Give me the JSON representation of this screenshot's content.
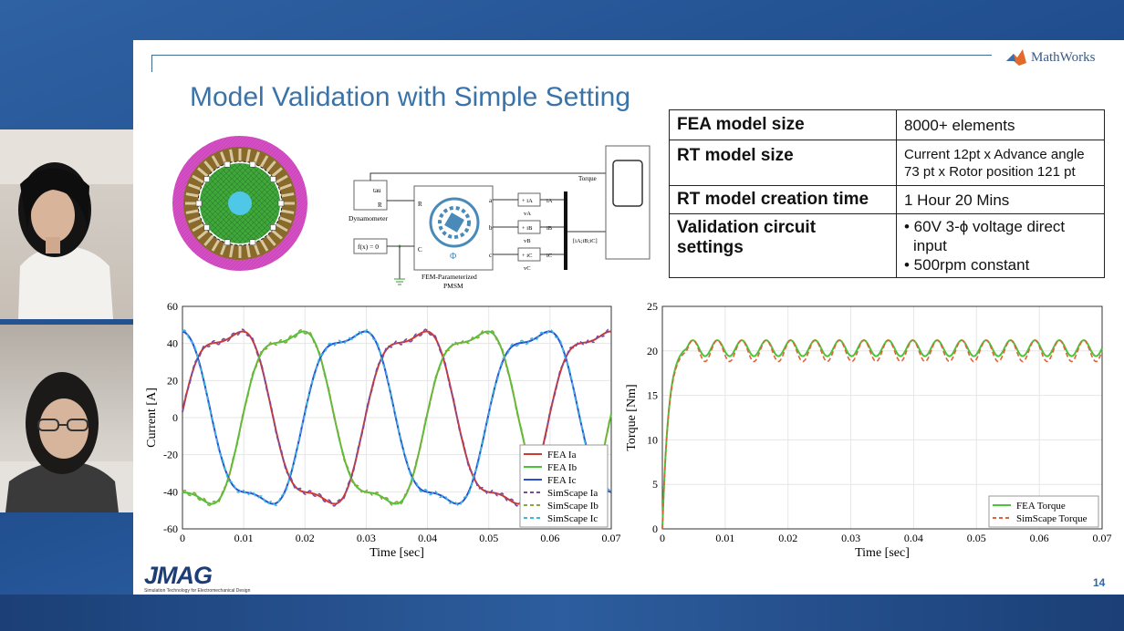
{
  "slide": {
    "title": "Model Validation with Simple Setting",
    "brand_top": "MathWorks",
    "brand_bottom": "JMAG",
    "brand_bottom_tagline": "Simulation Technology for Electromechanical Design",
    "page_number": "14"
  },
  "spec_table": {
    "rows": [
      {
        "key": "FEA model size",
        "value": "8000+ elements"
      },
      {
        "key": "RT model size",
        "value_lines": [
          "Current 12pt x Advance angle",
          "73 pt x Rotor position 121 pt"
        ]
      },
      {
        "key": "RT model creation time",
        "value": "1 Hour 20 Mins"
      },
      {
        "key_lines": [
          "Validation circuit",
          "settings"
        ],
        "value_lines": [
          "• 60V 3-ϕ voltage direct",
          "  input",
          "• 500rpm constant"
        ]
      }
    ]
  },
  "block_diagram": {
    "dyn_port": "tau",
    "dyn_port_r": "R",
    "dyn_label": "Dynamometer",
    "fx_label": "f(x) = 0",
    "pmsm_ports": [
      "R",
      "C",
      "a",
      "b",
      "c"
    ],
    "pmsm_label_1": "FEM-Parameterized",
    "pmsm_label_2": "PMSM",
    "sensors": [
      {
        "label": "+ iA",
        "out": "iA",
        "v": "vA"
      },
      {
        "label": "+ iB",
        "out": "iB",
        "v": "vB"
      },
      {
        "label": "+ iC",
        "out": "iC",
        "v": "vC"
      }
    ],
    "torque_label": "Torque",
    "bus_label": "[iA;iB;iC]"
  },
  "chart_data": [
    {
      "type": "line",
      "xlabel": "Time [sec]",
      "ylabel": "Current [A]",
      "xlim": [
        0,
        0.07
      ],
      "ylim": [
        -60,
        60
      ],
      "x_ticks": [
        "0",
        "0.01",
        "0.02",
        "0.03",
        "0.04",
        "0.05",
        "0.06",
        "0.07"
      ],
      "y_ticks": [
        "-60",
        "-40",
        "-20",
        "0",
        "20",
        "40",
        "60"
      ],
      "legend_position": "bottom-right",
      "series": [
        {
          "name": "FEA Ia",
          "color": "#d03a2e",
          "style": "solid",
          "amplitude": 50,
          "phase_deg": 0
        },
        {
          "name": "FEA Ib",
          "color": "#4cc43a",
          "style": "solid",
          "amplitude": 50,
          "phase_deg": -120
        },
        {
          "name": "FEA Ic",
          "color": "#2a4fd0",
          "style": "solid",
          "amplitude": 50,
          "phase_deg": 120
        },
        {
          "name": "SimScape Ia",
          "color": "#7a4aa0",
          "style": "dashed"
        },
        {
          "name": "SimScape Ib",
          "color": "#8aa83a",
          "style": "dashed"
        },
        {
          "name": "SimScape Ic",
          "color": "#3ab8e0",
          "style": "dashed"
        }
      ],
      "frequency_hz": 33.3,
      "grid": true
    },
    {
      "type": "line",
      "xlabel": "Time [sec]",
      "ylabel": "Torque [Nm]",
      "xlim": [
        0,
        0.07
      ],
      "ylim": [
        0,
        25
      ],
      "x_ticks": [
        "0",
        "0.01",
        "0.02",
        "0.03",
        "0.04",
        "0.05",
        "0.06",
        "0.07"
      ],
      "y_ticks": [
        "0",
        "5",
        "10",
        "15",
        "20",
        "25"
      ],
      "legend_position": "bottom-right",
      "series": [
        {
          "name": "FEA Torque",
          "color": "#4cc43a",
          "style": "solid",
          "mean": 20.3,
          "ripple": 0.9
        },
        {
          "name": "SimScape Torque",
          "color": "#e0643a",
          "style": "dashed",
          "mean": 20.0,
          "ripple": 1.2
        }
      ],
      "rise_time_s": 0.004,
      "ripple_cycles": 18,
      "grid": true
    }
  ],
  "colors": {
    "title": "#3a73a8",
    "background": "#2a5590",
    "motor_outer": "#d44fc4",
    "motor_teeth": "#8a6a2a",
    "motor_rotor": "#3fa83a",
    "motor_shaft": "#4fc7e6"
  }
}
